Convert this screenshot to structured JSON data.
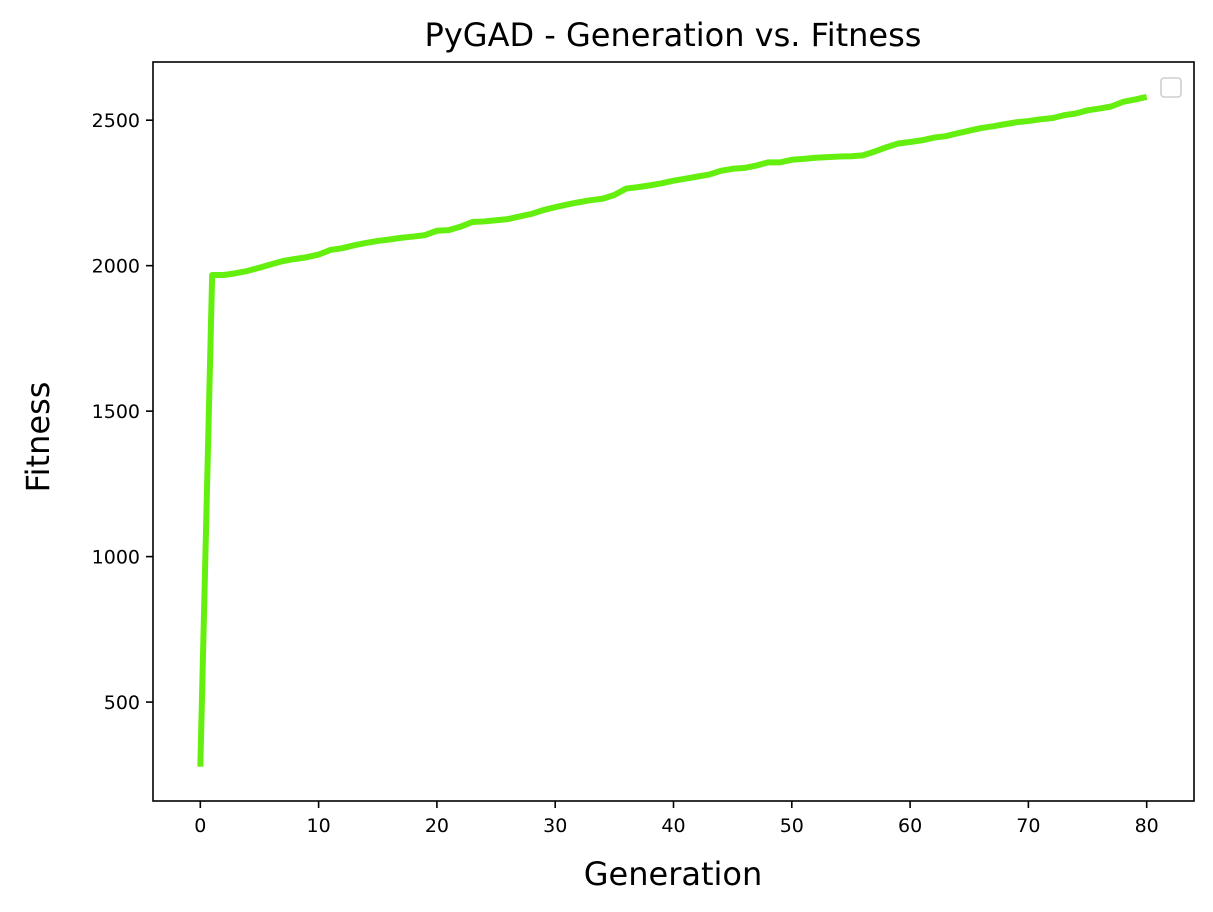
{
  "chart_data": {
    "type": "line",
    "title": "PyGAD - Generation vs. Fitness",
    "xlabel": "Generation",
    "ylabel": "Fitness",
    "xlim": [
      -4,
      84
    ],
    "ylim": [
      160,
      2700
    ],
    "xticks": [
      0,
      10,
      20,
      30,
      40,
      50,
      60,
      70,
      80
    ],
    "xtick_labels": [
      "0",
      "10",
      "20",
      "30",
      "40",
      "50",
      "60",
      "70",
      "80"
    ],
    "yticks": [
      500,
      1000,
      1500,
      2000,
      2500
    ],
    "ytick_labels": [
      "500",
      "1000",
      "1500",
      "2000",
      "2500"
    ],
    "grid": false,
    "legend": {
      "placement": "top-right",
      "entries": []
    },
    "series": [
      {
        "color": "#64ef0e",
        "x": [
          0,
          1,
          2,
          3,
          4,
          5,
          6,
          7,
          8,
          9,
          10,
          11,
          12,
          13,
          14,
          15,
          16,
          17,
          18,
          19,
          20,
          21,
          22,
          23,
          24,
          25,
          26,
          27,
          28,
          29,
          30,
          31,
          32,
          33,
          34,
          35,
          36,
          37,
          38,
          39,
          40,
          41,
          42,
          43,
          44,
          45,
          46,
          47,
          48,
          49,
          50,
          51,
          52,
          53,
          54,
          55,
          56,
          57,
          58,
          59,
          60,
          61,
          62,
          63,
          64,
          65,
          66,
          67,
          68,
          69,
          70,
          71,
          72,
          73,
          74,
          75,
          76,
          77,
          78,
          79,
          80
        ],
        "y": [
          278,
          1968,
          1968,
          1974,
          1982,
          1993,
          2005,
          2016,
          2023,
          2029,
          2038,
          2054,
          2060,
          2070,
          2078,
          2085,
          2090,
          2096,
          2100,
          2105,
          2120,
          2122,
          2134,
          2150,
          2152,
          2156,
          2160,
          2169,
          2178,
          2191,
          2201,
          2210,
          2218,
          2225,
          2230,
          2243,
          2265,
          2270,
          2276,
          2283,
          2292,
          2299,
          2306,
          2313,
          2326,
          2333,
          2336,
          2344,
          2355,
          2355,
          2364,
          2367,
          2371,
          2373,
          2375,
          2376,
          2379,
          2392,
          2407,
          2420,
          2425,
          2431,
          2440,
          2445,
          2455,
          2464,
          2473,
          2479,
          2486,
          2493,
          2497,
          2503,
          2507,
          2517,
          2523,
          2534,
          2540,
          2547,
          2563,
          2571,
          2580
        ]
      }
    ]
  }
}
